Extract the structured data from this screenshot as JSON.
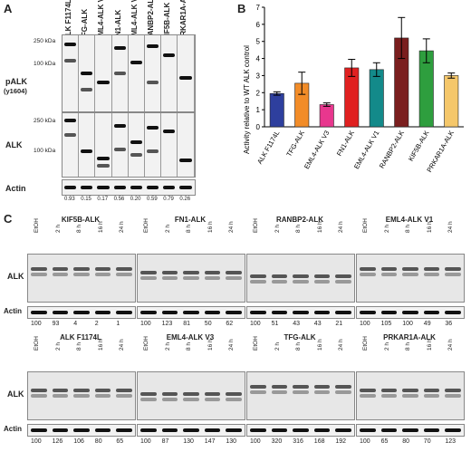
{
  "panels": {
    "a": "A",
    "b": "B",
    "c": "C"
  },
  "panel_a": {
    "lanes": [
      "ALK F1174L",
      "TFG-ALK",
      "EML4-ALK V3",
      "FN1-ALK",
      "EML4-ALK V1",
      "RANBP2-ALK",
      "KIF5B-ALK",
      "PRKAR1A-ALK"
    ],
    "row_labels": {
      "palk": "pALK",
      "palk_sub": "(y1604)",
      "alk": "ALK",
      "actin": "Actin"
    },
    "mw_palk": [
      "250 kDa",
      "100 kDa"
    ],
    "mw_alk": [
      "250 kDa",
      "100 kDa"
    ],
    "values": [
      "0.93",
      "0.15",
      "0.17",
      "0.56",
      "0.20",
      "0.59",
      "0.79",
      "0.26"
    ]
  },
  "chart_data": {
    "type": "bar",
    "categories": [
      "ALK F1174L",
      "TFG-ALK",
      "EML4-ALK V3",
      "FN1-ALK",
      "EML4-ALK V1",
      "RANBP2-ALK",
      "KIF5B-ALK",
      "PRKAR1A-ALK"
    ],
    "values": [
      1.95,
      2.55,
      1.3,
      3.45,
      3.35,
      5.2,
      4.45,
      3.0
    ],
    "errors": [
      0.1,
      0.65,
      0.1,
      0.5,
      0.4,
      1.2,
      0.7,
      0.15
    ],
    "colors": [
      "#2e3f9e",
      "#f28c28",
      "#e8378e",
      "#e02020",
      "#138a8a",
      "#7a1e1e",
      "#2e9e3e",
      "#f5c76a"
    ],
    "ylabel": "Activity relative to WT ALK control",
    "ylim": [
      0,
      7
    ],
    "yticks": [
      0,
      1,
      2,
      3,
      4,
      5,
      6,
      7
    ],
    "grid": false
  },
  "panel_c": {
    "row_alk": "ALK",
    "row_actin": "Actin",
    "lanes": [
      "EtOH",
      "2 h",
      "8 h",
      "16 h",
      "24 h"
    ],
    "blots": [
      {
        "title": "KIF5B-ALK",
        "values": [
          "100",
          "93",
          "4",
          "2",
          "1"
        ]
      },
      {
        "title": "FN1-ALK",
        "values": [
          "100",
          "123",
          "81",
          "50",
          "62"
        ]
      },
      {
        "title": "RANBP2-ALK",
        "values": [
          "100",
          "51",
          "43",
          "43",
          "21"
        ]
      },
      {
        "title": "EML4-ALK V1",
        "values": [
          "100",
          "105",
          "100",
          "49",
          "36"
        ]
      },
      {
        "title": "ALK F1174L",
        "values": [
          "100",
          "126",
          "106",
          "80",
          "65"
        ]
      },
      {
        "title": "EML4-ALK V3",
        "values": [
          "100",
          "87",
          "130",
          "147",
          "130"
        ]
      },
      {
        "title": "TFG-ALK",
        "values": [
          "100",
          "320",
          "316",
          "168",
          "192"
        ]
      },
      {
        "title": "PRKAR1A-ALK",
        "values": [
          "100",
          "65",
          "80",
          "70",
          "123"
        ]
      }
    ]
  }
}
